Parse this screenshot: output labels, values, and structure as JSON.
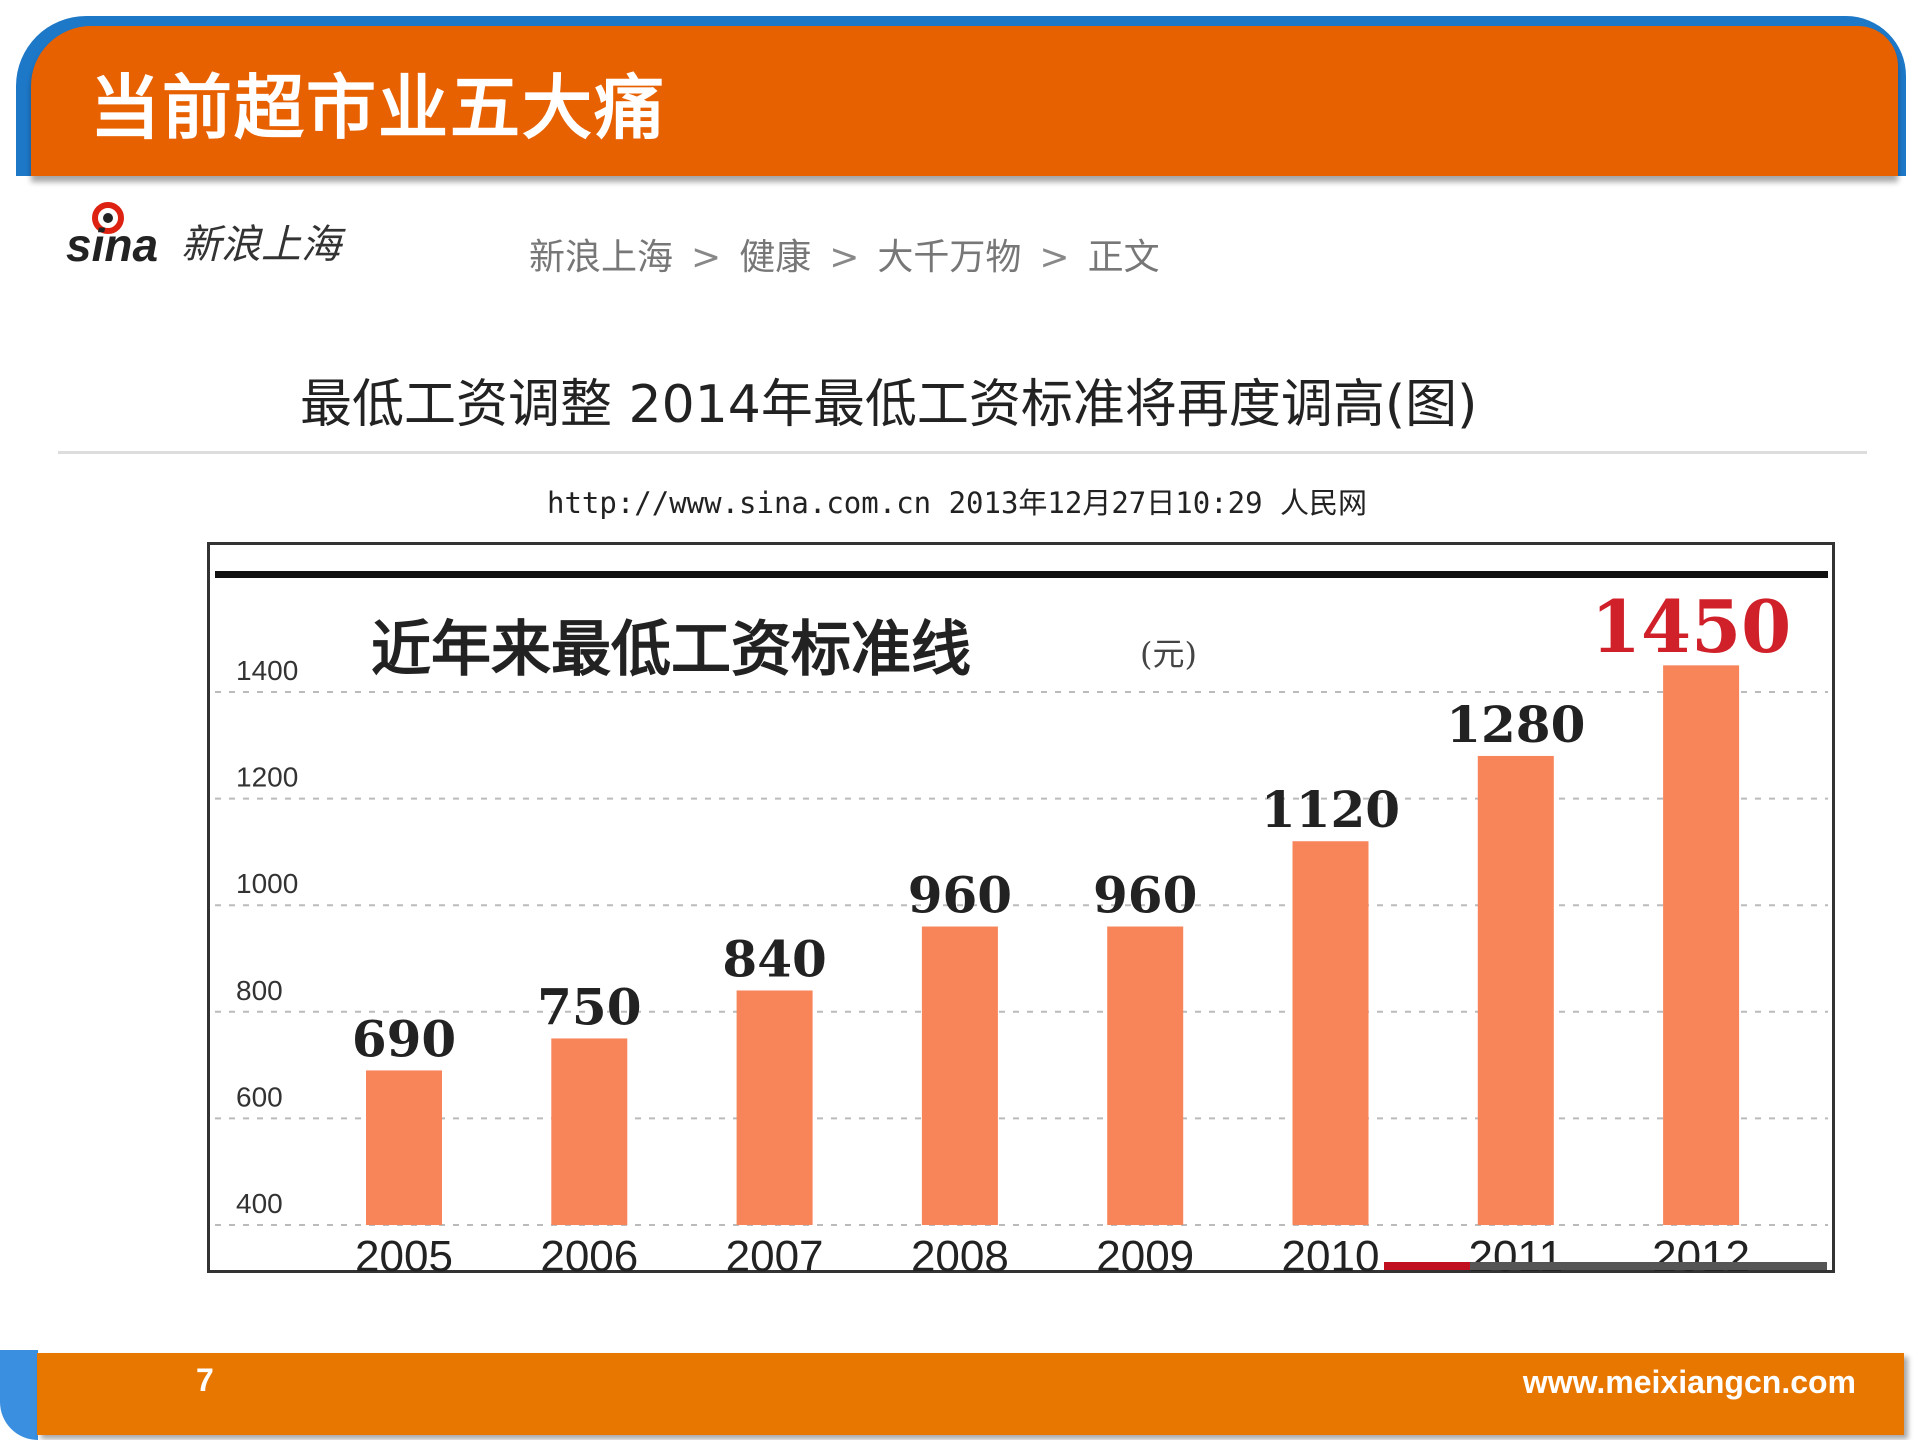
{
  "slide": {
    "title": "当前超市业五大痛",
    "page_number": "7",
    "footer_url": "www.meixiangcn.com"
  },
  "colors": {
    "header": "#E86100",
    "footer": "#E87700",
    "bar": "#F8845A",
    "highlight": "#D0202A"
  },
  "article": {
    "logo": "sina新浪上海",
    "breadcrumb": [
      "新浪上海",
      "健康",
      "大千万物",
      "正文"
    ],
    "breadcrumb_separator_icon": "chevron-right-icon",
    "headline": "最低工资调整 2014年最低工资标准将再度调高(图)",
    "source": "http://www.sina.com.cn 2013年12月27日10:29 人民网"
  },
  "chart_data": {
    "type": "bar",
    "title": "近年来最低工资标准线",
    "unit": "(元)",
    "categories": [
      "2005",
      "2006",
      "2007",
      "2008",
      "2009",
      "2010",
      "2011",
      "2012"
    ],
    "values": [
      690,
      750,
      840,
      960,
      960,
      1120,
      1280,
      1450
    ],
    "value_labels": [
      "690",
      "750",
      "840",
      "960",
      "960",
      "1120",
      "1280",
      "1450"
    ],
    "yticks": [
      "1400",
      "1200",
      "1000",
      "800",
      "600",
      "400"
    ],
    "ylim": [
      400,
      1400
    ],
    "grid": "horizontal dashed",
    "highlight_last": true
  }
}
